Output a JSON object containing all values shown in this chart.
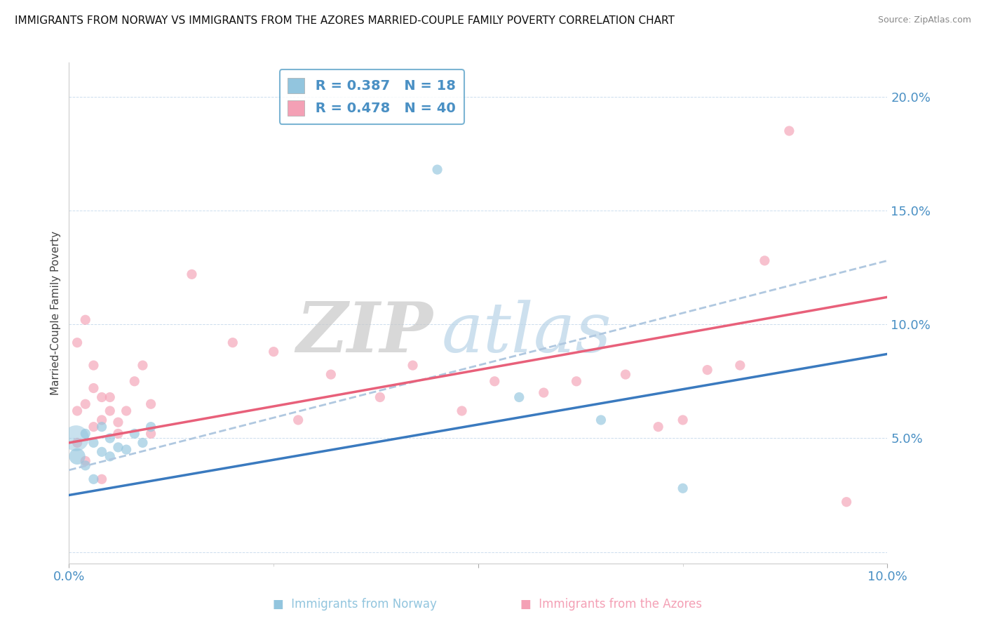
{
  "title": "IMMIGRANTS FROM NORWAY VS IMMIGRANTS FROM THE AZORES MARRIED-COUPLE FAMILY POVERTY CORRELATION CHART",
  "source": "Source: ZipAtlas.com",
  "ylabel": "Married-Couple Family Poverty",
  "y_ticks": [
    0.0,
    0.05,
    0.1,
    0.15,
    0.2
  ],
  "y_tick_labels": [
    "",
    "5.0%",
    "10.0%",
    "15.0%",
    "20.0%"
  ],
  "xlim": [
    0.0,
    0.1
  ],
  "ylim": [
    -0.005,
    0.215
  ],
  "norway_R": 0.387,
  "norway_N": 18,
  "azores_R": 0.478,
  "azores_N": 40,
  "norway_color": "#92c5de",
  "azores_color": "#f4a0b5",
  "norway_line_color": "#3a7abf",
  "azores_line_color": "#e8607a",
  "dash_line_color": "#b0c8e0",
  "norway_scatter": [
    [
      0.001,
      0.042
    ],
    [
      0.002,
      0.052
    ],
    [
      0.002,
      0.038
    ],
    [
      0.003,
      0.048
    ],
    [
      0.003,
      0.032
    ],
    [
      0.004,
      0.044
    ],
    [
      0.004,
      0.055
    ],
    [
      0.005,
      0.042
    ],
    [
      0.005,
      0.05
    ],
    [
      0.006,
      0.046
    ],
    [
      0.007,
      0.045
    ],
    [
      0.008,
      0.052
    ],
    [
      0.009,
      0.048
    ],
    [
      0.01,
      0.055
    ],
    [
      0.045,
      0.168
    ],
    [
      0.055,
      0.068
    ],
    [
      0.065,
      0.058
    ],
    [
      0.075,
      0.028
    ]
  ],
  "norway_sizes": [
    80,
    30,
    30,
    30,
    30,
    30,
    30,
    30,
    30,
    30,
    30,
    30,
    30,
    30,
    30,
    30,
    30,
    30
  ],
  "norway_large_idx": 0,
  "azores_scatter": [
    [
      0.001,
      0.092
    ],
    [
      0.001,
      0.062
    ],
    [
      0.001,
      0.048
    ],
    [
      0.002,
      0.102
    ],
    [
      0.002,
      0.04
    ],
    [
      0.002,
      0.065
    ],
    [
      0.003,
      0.055
    ],
    [
      0.003,
      0.072
    ],
    [
      0.003,
      0.082
    ],
    [
      0.004,
      0.058
    ],
    [
      0.004,
      0.068
    ],
    [
      0.004,
      0.032
    ],
    [
      0.005,
      0.068
    ],
    [
      0.005,
      0.062
    ],
    [
      0.006,
      0.057
    ],
    [
      0.006,
      0.052
    ],
    [
      0.007,
      0.062
    ],
    [
      0.008,
      0.075
    ],
    [
      0.009,
      0.082
    ],
    [
      0.01,
      0.065
    ],
    [
      0.01,
      0.052
    ],
    [
      0.015,
      0.122
    ],
    [
      0.02,
      0.092
    ],
    [
      0.025,
      0.088
    ],
    [
      0.028,
      0.058
    ],
    [
      0.032,
      0.078
    ],
    [
      0.038,
      0.068
    ],
    [
      0.042,
      0.082
    ],
    [
      0.048,
      0.062
    ],
    [
      0.052,
      0.075
    ],
    [
      0.058,
      0.07
    ],
    [
      0.062,
      0.075
    ],
    [
      0.068,
      0.078
    ],
    [
      0.072,
      0.055
    ],
    [
      0.075,
      0.058
    ],
    [
      0.078,
      0.08
    ],
    [
      0.082,
      0.082
    ],
    [
      0.085,
      0.128
    ],
    [
      0.088,
      0.185
    ],
    [
      0.095,
      0.022
    ]
  ],
  "azores_sizes": [
    30,
    30,
    30,
    30,
    30,
    30,
    30,
    30,
    30,
    30,
    30,
    30,
    30,
    30,
    30,
    30,
    30,
    30,
    30,
    30,
    30,
    30,
    30,
    30,
    30,
    30,
    30,
    30,
    30,
    30,
    30,
    30,
    30,
    30,
    30,
    30,
    30,
    30,
    30,
    30
  ],
  "norway_line": [
    0.025,
    0.087
  ],
  "azores_line": [
    0.048,
    0.112
  ],
  "dash_line": [
    0.036,
    0.128
  ],
  "watermark_zip": "ZIP",
  "watermark_atlas": "atlas",
  "background_color": "#ffffff",
  "legend_box_color": "#ffffff",
  "legend_border_color": "#5ba3c9",
  "title_fontsize": 11,
  "tick_label_color": "#4a90c4",
  "ylabel_color": "#444444",
  "source_color": "#888888",
  "bottom_label_norway": "Immigrants from Norway",
  "bottom_label_azores": "Immigrants from the Azores"
}
